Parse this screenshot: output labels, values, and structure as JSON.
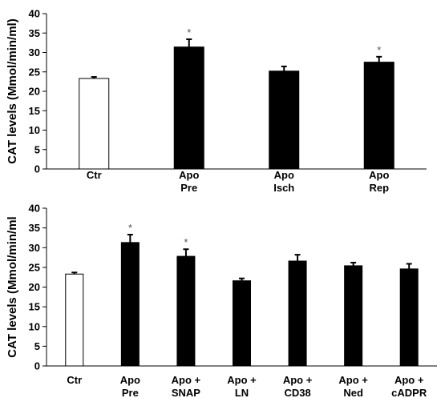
{
  "chart_data": [
    {
      "type": "bar",
      "title": "",
      "ylabel": "CAT levels (Mmol/min/ml)",
      "xlabel": "",
      "ylim": [
        0,
        40
      ],
      "yticks": [
        0,
        5,
        10,
        15,
        20,
        25,
        30,
        35,
        40
      ],
      "categories": [
        [
          "Ctr"
        ],
        [
          "Apo",
          "Pre"
        ],
        [
          "Apo",
          "Isch"
        ],
        [
          "Apo",
          "Rep"
        ]
      ],
      "values": [
        23.3,
        31.4,
        25.2,
        27.5
      ],
      "errors": [
        0.4,
        2.0,
        1.2,
        1.4
      ],
      "significant": [
        false,
        true,
        false,
        true
      ],
      "annotation_symbol": "*",
      "colors": [
        "#ffffff",
        "#000000",
        "#000000",
        "#000000"
      ],
      "grid": false,
      "legend": "none"
    },
    {
      "type": "bar",
      "title": "",
      "ylabel": "CAT levels (Mmol/min/ml",
      "xlabel": "",
      "ylim": [
        0,
        40
      ],
      "yticks": [
        0,
        5,
        10,
        15,
        20,
        25,
        30,
        35,
        40
      ],
      "categories": [
        [
          "Ctr"
        ],
        [
          "Apo",
          "Pre"
        ],
        [
          "Apo +",
          "SNAP"
        ],
        [
          "Apo +",
          "LN"
        ],
        [
          "Apo +",
          "CD38"
        ],
        [
          "Apo +",
          "Ned"
        ],
        [
          "Apo +",
          "cADPR"
        ]
      ],
      "values": [
        23.3,
        31.3,
        27.8,
        21.6,
        26.6,
        25.4,
        24.6
      ],
      "errors": [
        0.4,
        2.0,
        1.8,
        0.6,
        1.6,
        0.8,
        1.3
      ],
      "significant": [
        false,
        true,
        true,
        false,
        false,
        false,
        false
      ],
      "annotation_symbol": "*",
      "colors": [
        "#ffffff",
        "#000000",
        "#000000",
        "#000000",
        "#000000",
        "#000000",
        "#000000"
      ],
      "grid": false,
      "legend": "none"
    }
  ]
}
